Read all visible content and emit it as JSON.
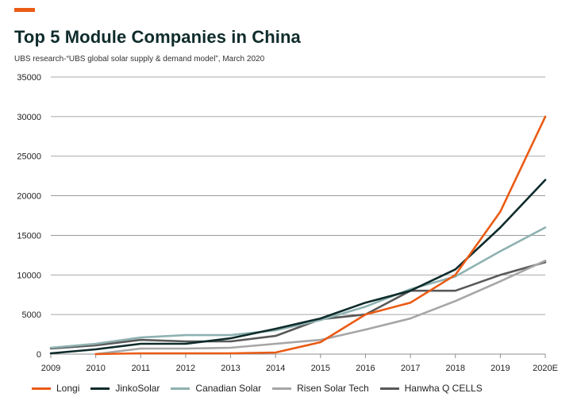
{
  "header": {
    "title": "Top 5 Module Companies in China",
    "subtitle": "UBS research-“UBS global solar supply & demand model”,  March  2020",
    "accent_color": "#ea5b14"
  },
  "chart_data": {
    "type": "line",
    "title": "Top 5 Module Companies in China",
    "subtitle": "UBS research-“UBS global solar supply & demand model”,  March  2020",
    "x": [
      "2009",
      "2010",
      "2011",
      "2012",
      "2013",
      "2014",
      "2015",
      "2016",
      "2017",
      "2018",
      "2019",
      "2020E"
    ],
    "ylim": [
      0,
      35000
    ],
    "yticks": [
      0,
      5000,
      10000,
      15000,
      20000,
      25000,
      30000,
      35000
    ],
    "grid": true,
    "legend": "bottom",
    "series": [
      {
        "name": "Longi",
        "color": "#ea5b14",
        "values": [
          null,
          0,
          100,
          100,
          100,
          200,
          1500,
          5000,
          6500,
          10000,
          18000,
          30000
        ]
      },
      {
        "name": "JinkoSolar",
        "color": "#0f2b2b",
        "values": [
          100,
          600,
          1300,
          1300,
          2000,
          3200,
          4500,
          6500,
          8000,
          10700,
          16000,
          22000
        ]
      },
      {
        "name": "Canadian Solar",
        "color": "#8fb1b1",
        "values": [
          800,
          1300,
          2100,
          2400,
          2400,
          3000,
          4300,
          6000,
          8200,
          9800,
          13000,
          16000
        ]
      },
      {
        "name": "Risen Solar Tech",
        "color": "#a6a6a6",
        "values": [
          null,
          0,
          700,
          700,
          800,
          1300,
          1800,
          3100,
          4500,
          6700,
          9200,
          11800
        ]
      },
      {
        "name": "Hanwha Q CELLS",
        "color": "#595959",
        "values": [
          700,
          1100,
          1800,
          1600,
          1600,
          2300,
          4400,
          5000,
          8000,
          8000,
          10000,
          11600
        ]
      }
    ]
  }
}
